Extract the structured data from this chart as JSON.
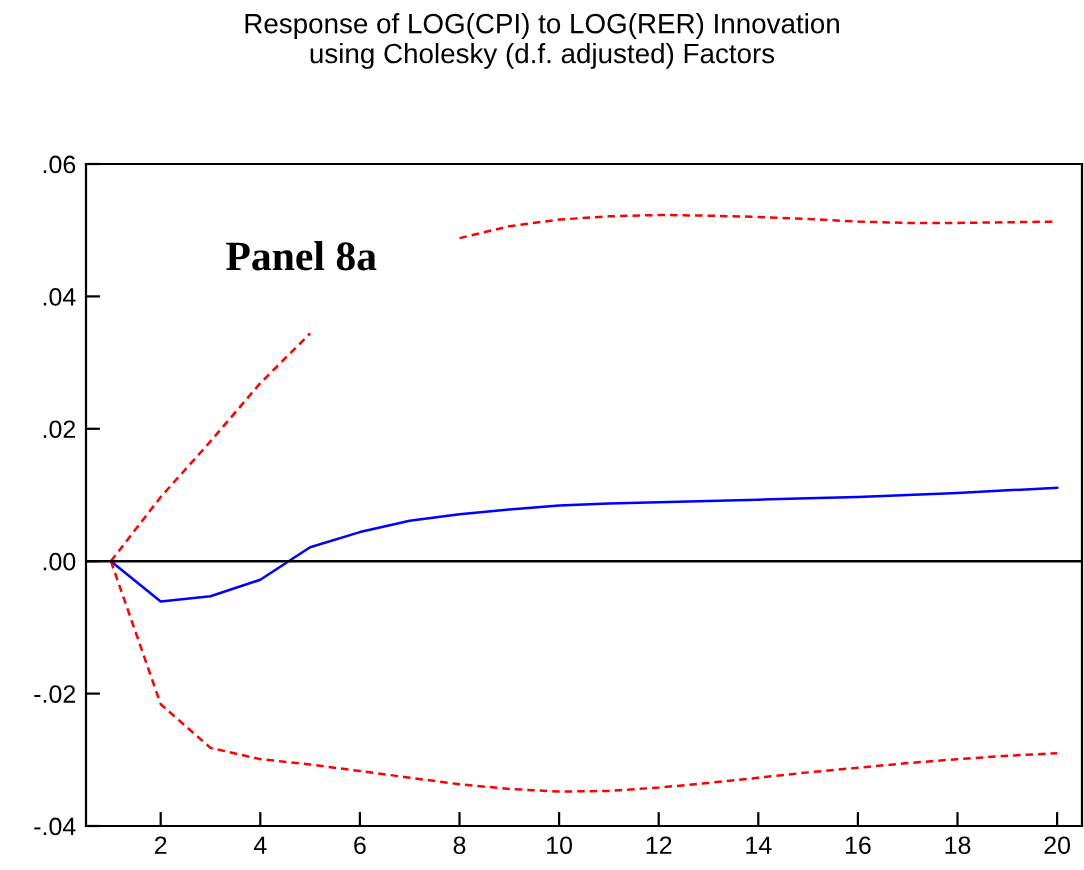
{
  "chart_data": {
    "type": "line",
    "title": "Response of LOG(CPI) to LOG(RER) Innovation\nusing Cholesky (d.f. adjusted) Factors",
    "x": [
      1,
      2,
      3,
      4,
      5,
      6,
      7,
      8,
      9,
      10,
      11,
      12,
      13,
      14,
      15,
      16,
      17,
      18,
      19,
      20
    ],
    "series": [
      {
        "color": "#0000ff",
        "line_style": "solid",
        "values": [
          0,
          -0.0061,
          -0.0053,
          -0.0028,
          0.0021,
          0.0044,
          0.0061,
          0.0071,
          0.0078,
          0.0084,
          0.0087,
          0.0089,
          0.0091,
          0.0093,
          0.0095,
          0.0097,
          0.01,
          0.0103,
          0.0107,
          0.0111
        ]
      },
      {
        "color": "#ff0000",
        "line_style": "dashed",
        "values": [
          0,
          0.0097,
          0.0181,
          0.0269,
          0.0344,
          null,
          null,
          0.0488,
          0.0506,
          0.0516,
          0.0521,
          0.0523,
          0.0522,
          0.052,
          0.0517,
          0.0513,
          0.0511,
          0.0511,
          0.0512,
          0.0513
        ]
      },
      {
        "color": "#ff0000",
        "line_style": "dashed",
        "values": [
          0,
          -0.0216,
          -0.0282,
          -0.0299,
          -0.0307,
          -0.0317,
          -0.0327,
          -0.0337,
          -0.0344,
          -0.0348,
          -0.0347,
          -0.0342,
          -0.0335,
          -0.0327,
          -0.0319,
          -0.0312,
          -0.0305,
          -0.0299,
          -0.0294,
          -0.029
        ]
      }
    ],
    "xlim": [
      0.5,
      20.5
    ],
    "xticks": [
      2,
      4,
      6,
      8,
      10,
      12,
      14,
      16,
      18,
      20
    ],
    "ylim": [
      -0.04,
      0.06
    ],
    "yticks": [
      {
        "value": -0.04,
        "label": "-.04"
      },
      {
        "value": -0.02,
        "label": "-.02"
      },
      {
        "value": 0,
        "label": ".00"
      },
      {
        "value": 0.02,
        "label": ".02"
      },
      {
        "value": 0.04,
        "label": ".04"
      },
      {
        "value": 0.06,
        "label": ".06"
      }
    ],
    "ref_lines": [
      {
        "axis": "y",
        "value": 0,
        "color": "#000000",
        "line_style": "solid"
      }
    ],
    "annotations": [
      "Panel 8a"
    ],
    "grid": false,
    "legend": false,
    "marker": "none"
  }
}
